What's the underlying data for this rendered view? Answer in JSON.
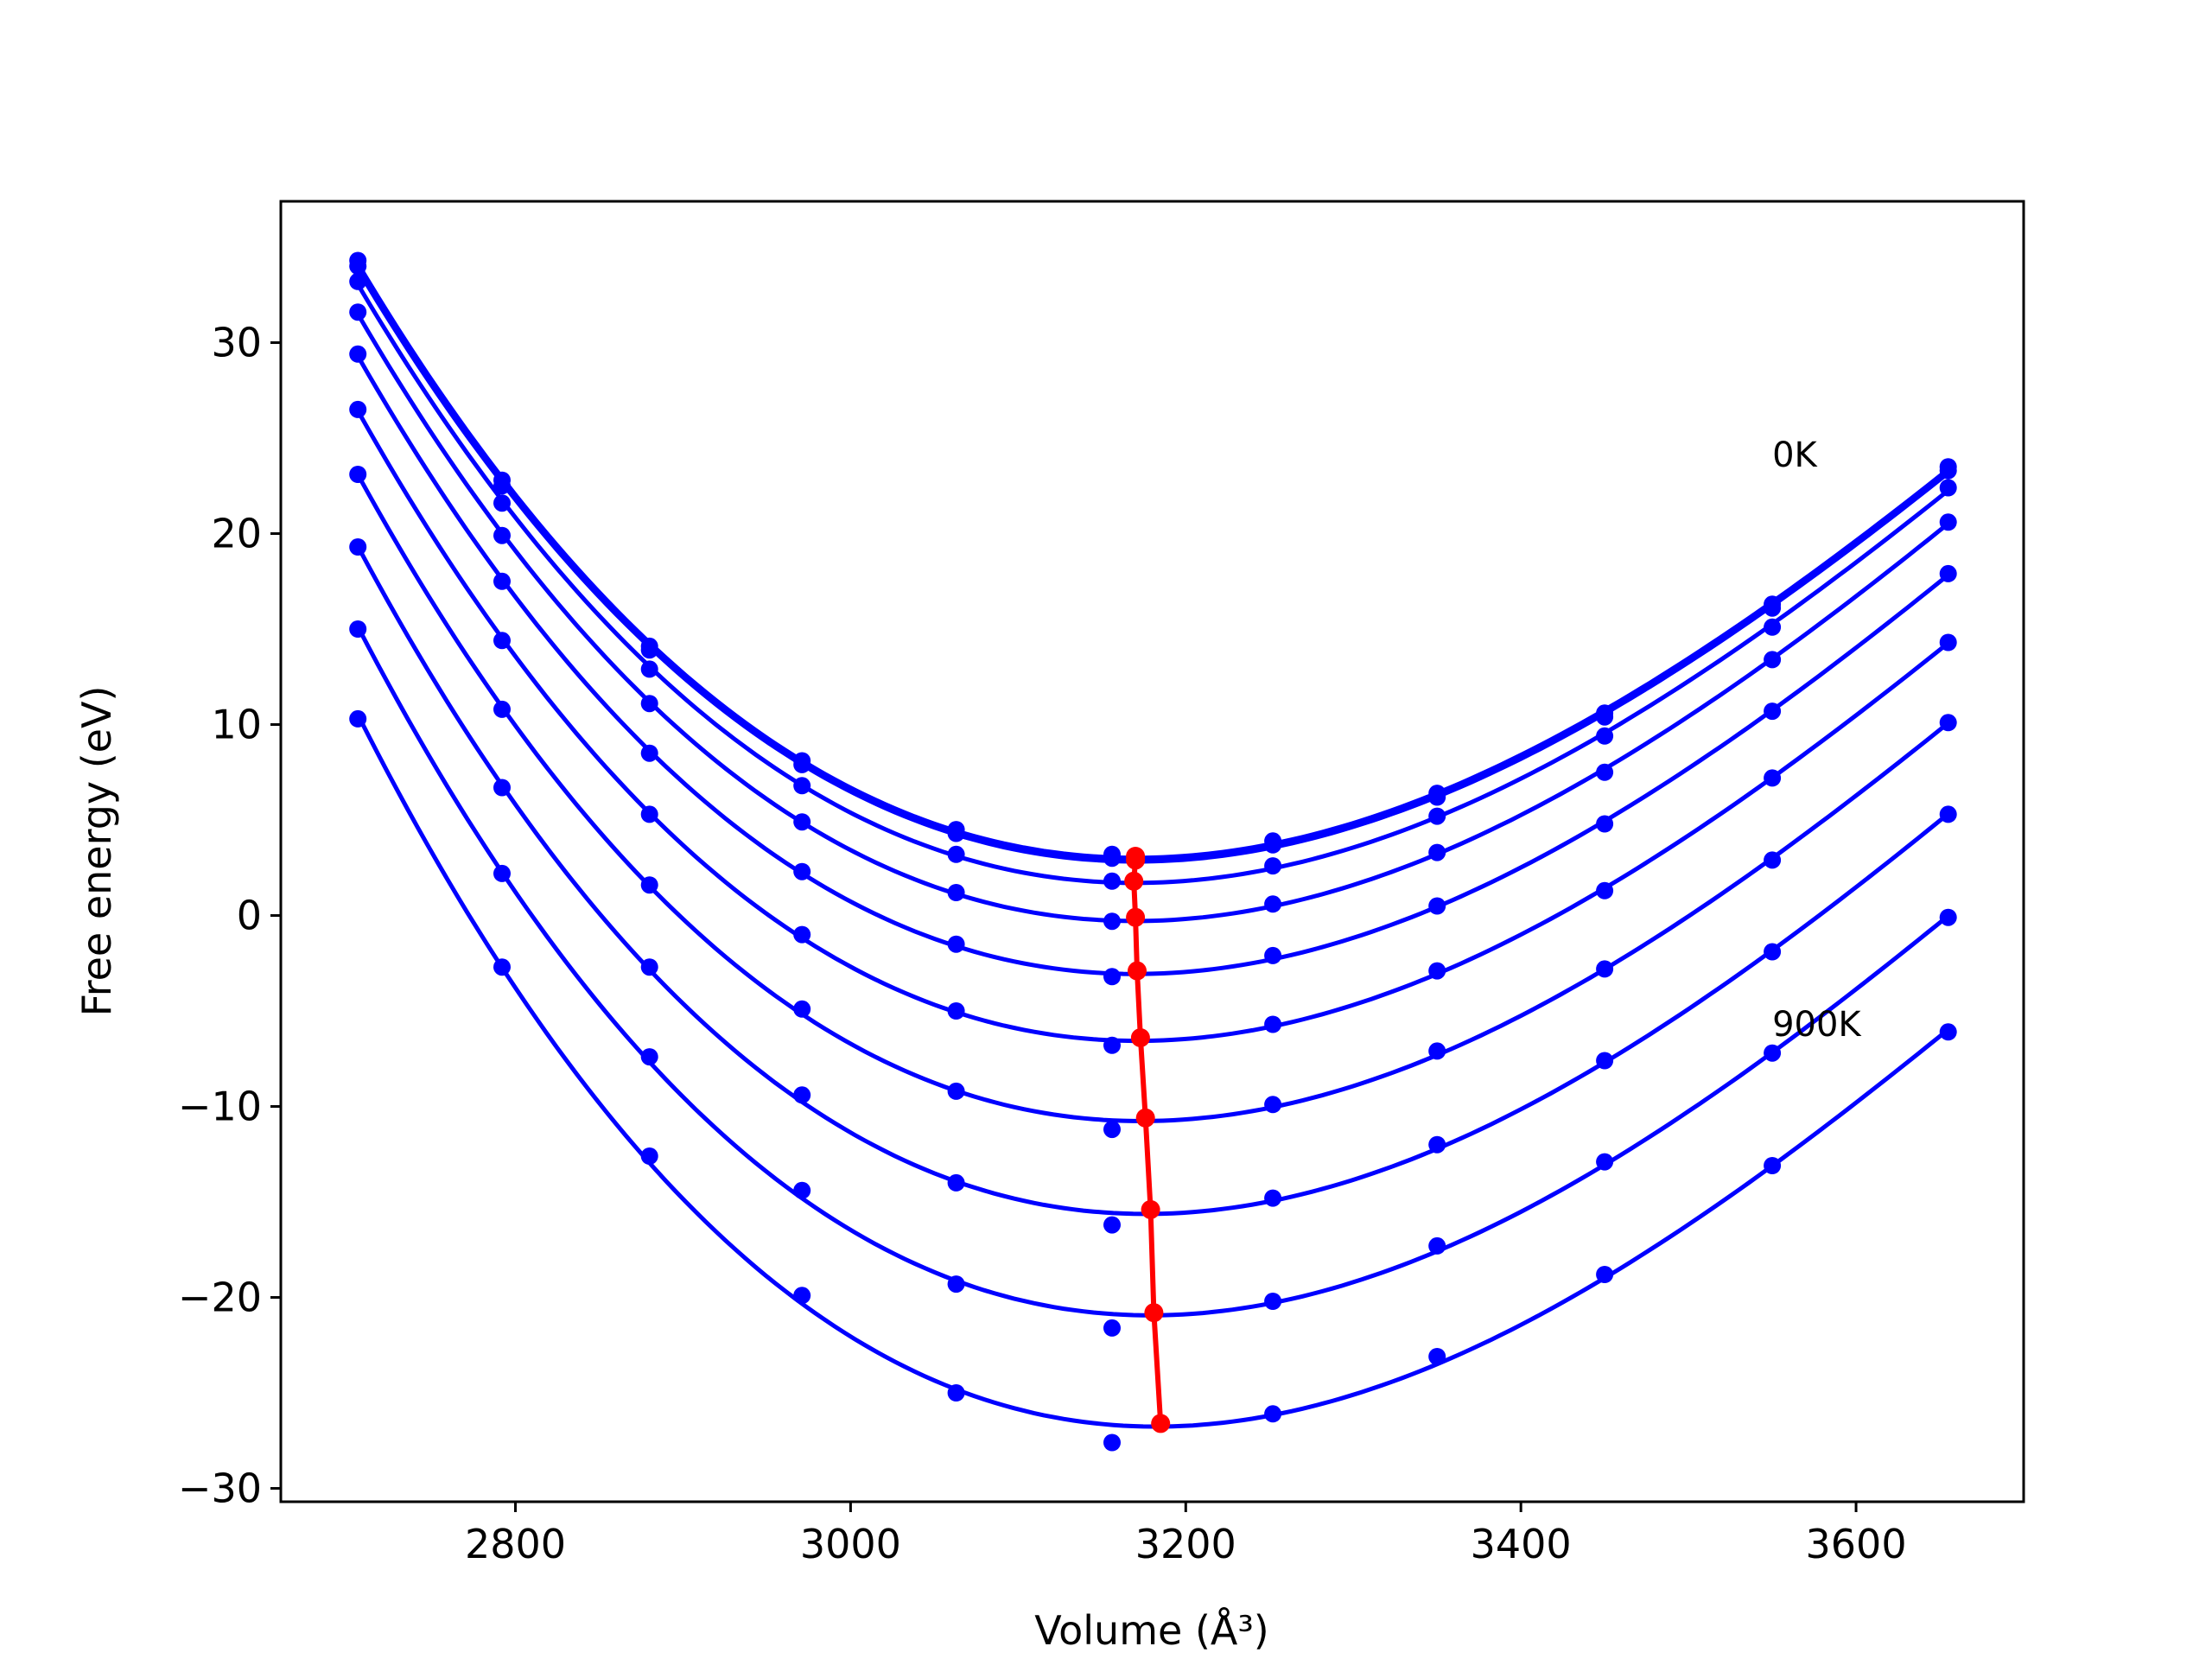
{
  "chart_data": {
    "type": "line",
    "title": "",
    "xlabel": "Volume",
    "xlabel_unit": "(Å³)",
    "ylabel": "Free energy (eV)",
    "xlim": [
      2660,
      3700
    ],
    "ylim": [
      -30.7,
      37.4
    ],
    "xticks": [
      2800,
      3000,
      3200,
      3400,
      3600
    ],
    "yticks": [
      -30,
      -20,
      -10,
      0,
      10,
      20,
      30
    ],
    "grid": false,
    "legend": "none",
    "colors": {
      "fit": "#0000ff",
      "points": "#0000ff",
      "minima": "#ff0000"
    },
    "annotations": [
      {
        "text": "0K",
        "x": 3550,
        "y": 23.5
      },
      {
        "text": "900K",
        "x": 3550,
        "y": -6.3
      }
    ],
    "volumes": [
      2706,
      2792,
      2880,
      2971,
      3063,
      3156,
      3252,
      3350,
      3450,
      3550,
      3655
    ],
    "series": [
      {
        "E": [
          34.3,
          22.8,
          14.1,
          8.1,
          4.5,
          3.2,
          3.9,
          6.4,
          10.6,
          16.3,
          23.5
        ],
        "vmin": 3170,
        "fmin": 3.1
      },
      {
        "E": [
          34.0,
          22.5,
          13.9,
          7.9,
          4.3,
          3.0,
          3.7,
          6.2,
          10.4,
          16.1,
          23.3
        ],
        "vmin": 3170,
        "fmin": 2.9
      },
      {
        "E": [
          33.2,
          21.6,
          12.9,
          6.8,
          3.2,
          1.8,
          2.6,
          5.2,
          9.4,
          15.1,
          22.4
        ],
        "vmin": 3169,
        "fmin": 1.8
      },
      {
        "E": [
          31.6,
          19.9,
          11.1,
          4.9,
          1.2,
          -0.3,
          0.6,
          3.3,
          7.5,
          13.4,
          20.6
        ],
        "vmin": 3170,
        "fmin": -0.1
      },
      {
        "E": [
          29.4,
          17.5,
          8.5,
          2.3,
          -1.5,
          -3.2,
          -2.1,
          0.5,
          4.8,
          10.7,
          17.9
        ],
        "vmin": 3171,
        "fmin": -2.9
      },
      {
        "E": [
          26.5,
          14.4,
          5.3,
          -1.0,
          -5.0,
          -6.8,
          -5.7,
          -2.9,
          1.3,
          7.2,
          14.3
        ],
        "vmin": 3173,
        "fmin": -6.4
      },
      {
        "E": [
          23.1,
          10.8,
          1.6,
          -4.9,
          -9.2,
          -11.2,
          -9.9,
          -7.1,
          -2.8,
          2.9,
          10.1
        ],
        "vmin": 3176,
        "fmin": -10.6
      },
      {
        "E": [
          19.3,
          6.7,
          -2.7,
          -9.4,
          -14.0,
          -16.2,
          -14.8,
          -12.0,
          -7.6,
          -1.9,
          5.3
        ],
        "vmin": 3179,
        "fmin": -15.4
      },
      {
        "E": [
          15.0,
          2.2,
          -7.4,
          -14.4,
          -19.3,
          -21.6,
          -20.2,
          -17.3,
          -12.9,
          -7.2,
          -0.1
        ],
        "vmin": 3181,
        "fmin": -20.8
      },
      {
        "E": [
          10.3,
          -2.7,
          -12.6,
          -19.9,
          -25.0,
          -27.6,
          -26.1,
          -23.1,
          -18.8,
          -13.1,
          -6.1
        ],
        "vmin": 3185,
        "fmin": -26.6
      }
    ]
  }
}
